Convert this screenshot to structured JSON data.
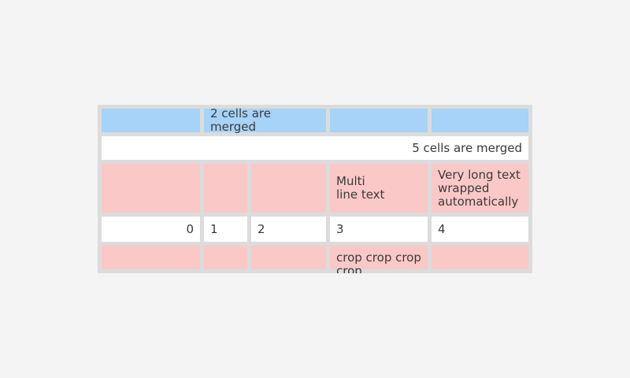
{
  "page": {
    "background": "#f4f4f4"
  },
  "table": {
    "colors": {
      "container": "#dcdcdc",
      "blue_cell": "#a6d3f7",
      "pink_cell": "#fbc8c8",
      "white_cell": "#ffffff",
      "text": "#3a3a3a"
    },
    "rows": [
      {
        "name": "blue-header-row",
        "cells": [
          {
            "text": ""
          },
          {
            "text": "2 cells are merged",
            "merged": 2,
            "align": "center"
          },
          {
            "text": ""
          },
          {
            "text": ""
          }
        ]
      },
      {
        "name": "white-merged-row",
        "cells": [
          {
            "text": "5 cells are merged",
            "merged": 5,
            "align": "right"
          }
        ]
      },
      {
        "name": "pink-tall-row",
        "cells": [
          {
            "text": ""
          },
          {
            "text": ""
          },
          {
            "text": ""
          },
          {
            "text": "Multi\nline text"
          },
          {
            "text": "Very long text wrapped automatically"
          }
        ]
      },
      {
        "name": "white-number-row",
        "cells": [
          {
            "text": "0",
            "align": "right"
          },
          {
            "text": "1"
          },
          {
            "text": "2"
          },
          {
            "text": "3"
          },
          {
            "text": "4"
          }
        ]
      },
      {
        "name": "pink-cropped-row",
        "cells": [
          {
            "text": ""
          },
          {
            "text": ""
          },
          {
            "text": ""
          },
          {
            "text": "crop crop crop crop"
          },
          {
            "text": ""
          }
        ]
      }
    ]
  }
}
